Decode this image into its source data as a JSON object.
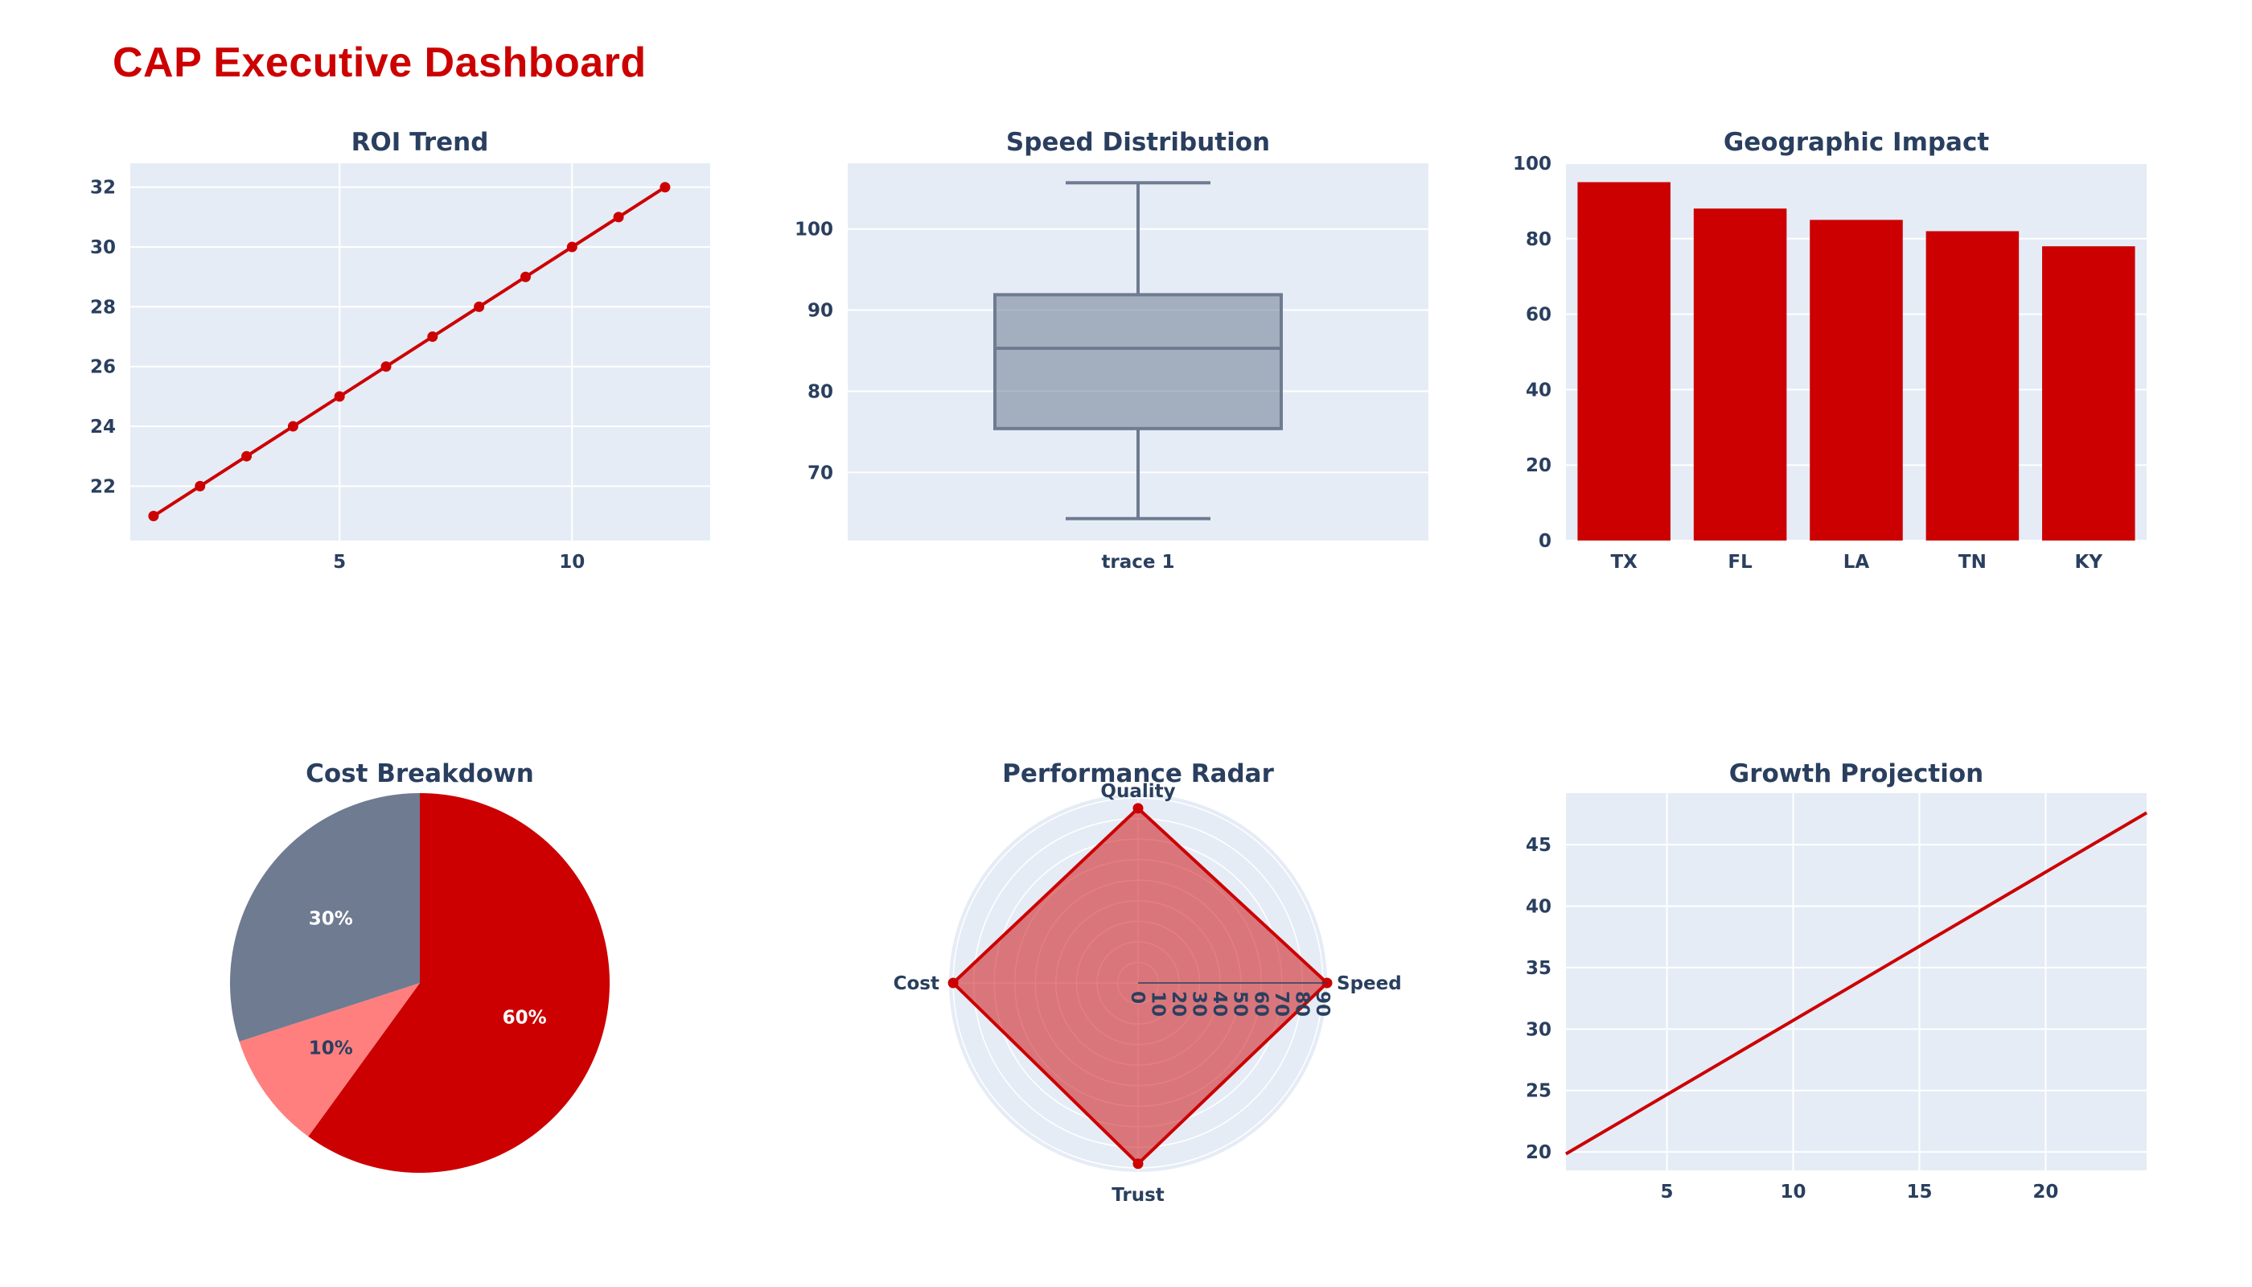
{
  "dashboard": {
    "title": "CAP Executive Dashboard"
  },
  "colors": {
    "accent": "#cc0000",
    "grey": "#6e7b91",
    "pink": "#ff7f7f",
    "plot_bg": "#e5ecf6",
    "text": "#2a3f5f",
    "grid": "#ffffff"
  },
  "chart_data": [
    {
      "id": "roi",
      "type": "line",
      "title": "ROI Trend",
      "x": [
        1,
        2,
        3,
        4,
        5,
        6,
        7,
        8,
        9,
        10,
        11,
        12
      ],
      "y": [
        21,
        22,
        23,
        24,
        25,
        26,
        27,
        28,
        29,
        30,
        31,
        32
      ],
      "xlim": [
        0.5,
        12.97
      ],
      "ylim": [
        20.18,
        32.8
      ],
      "xticks": [
        5,
        10
      ],
      "yticks": [
        22,
        24,
        26,
        28,
        30,
        32
      ],
      "markers": true,
      "grid": true
    },
    {
      "id": "speed",
      "type": "box",
      "title": "Speed Distribution",
      "category": "trace 1",
      "min": 64.3,
      "q1": 75.4,
      "median": 85.3,
      "q3": 91.9,
      "max": 105.7,
      "ylim": [
        61.6,
        108.1
      ],
      "yticks": [
        70,
        80,
        90,
        100
      ],
      "grid": true
    },
    {
      "id": "geo",
      "type": "bar",
      "title": "Geographic Impact",
      "categories": [
        "TX",
        "FL",
        "LA",
        "TN",
        "KY"
      ],
      "values": [
        95,
        88,
        85,
        82,
        78
      ],
      "ylim": [
        0,
        100
      ],
      "yticks": [
        0,
        20,
        40,
        60,
        80,
        100
      ],
      "grid": true
    },
    {
      "id": "cost",
      "type": "pie",
      "title": "Cost Breakdown",
      "slices": [
        {
          "value": 60,
          "label": "60%",
          "color": "#cc0000",
          "label_color": "#ffffff"
        },
        {
          "value": 10,
          "label": "10%",
          "color": "#ff7f7f",
          "label_color": "#2a3f5f"
        },
        {
          "value": 30,
          "label": "30%",
          "color": "#6e7b91",
          "label_color": "#ffffff"
        }
      ]
    },
    {
      "id": "radar",
      "type": "radar",
      "title": "Performance Radar",
      "axes": [
        "Quality",
        "Speed",
        "Trust",
        "Cost"
      ],
      "values": [
        85,
        92,
        88,
        90
      ],
      "rmax": 92,
      "rticks": [
        0,
        10,
        20,
        30,
        40,
        50,
        60,
        70,
        80,
        90
      ]
    },
    {
      "id": "growth",
      "type": "line",
      "title": "Growth Projection",
      "x": [
        1,
        24
      ],
      "y": [
        19.84,
        47.6
      ],
      "xlim": [
        1,
        24
      ],
      "ylim": [
        18.5,
        49.2
      ],
      "xticks": [
        5,
        10,
        15,
        20
      ],
      "yticks": [
        20,
        25,
        30,
        35,
        40,
        45
      ],
      "markers": false,
      "grid": true
    }
  ]
}
